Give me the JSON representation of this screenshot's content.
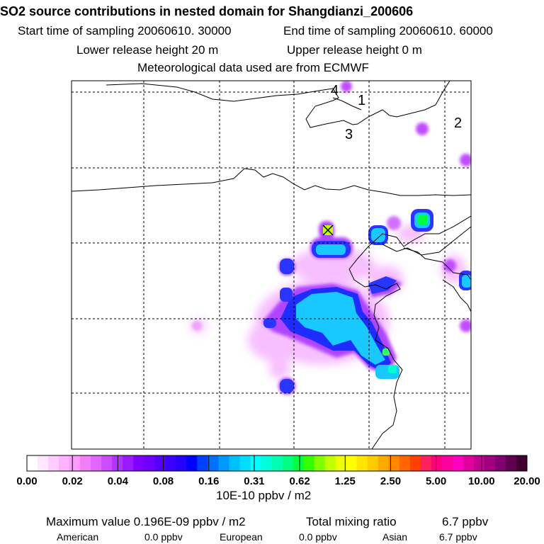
{
  "header": {
    "title": "SO2 source contributions in nested domain for Shangdianzi_200606",
    "start_label": "Start time of sampling 20060610. 30000",
    "end_label": "End time of sampling 20060610. 60000",
    "lower_label": "Lower release height   20 m",
    "upper_label": "Upper release height    0 m",
    "met_label": "Meteorological data used are from ECMWF"
  },
  "map": {
    "region_labels": [
      "4",
      "1",
      "3",
      "2"
    ],
    "station_marker": "x-cross-icon"
  },
  "colorbar": {
    "unit": "10E-10 ppbv / m2",
    "tick_labels": [
      "0.00",
      "0.02",
      "0.04",
      "0.08",
      "0.16",
      "0.31",
      "0.62",
      "1.25",
      "2.50",
      "5.00",
      "10.00",
      "20.00"
    ],
    "colors": [
      "#ffffff",
      "#ffe6ff",
      "#ffccff",
      "#ffb3ff",
      "#ff99ff",
      "#f27ff7",
      "#e066ff",
      "#cc4dff",
      "#b233ff",
      "#9a1aff",
      "#8000ff",
      "#6f00ff",
      "#5500ff",
      "#3b00ff",
      "#2400ff",
      "#0000ff",
      "#0040ff",
      "#0070ff",
      "#0099ff",
      "#00bfff",
      "#00ddff",
      "#00ffff",
      "#00ffd9",
      "#00ffb3",
      "#00ff80",
      "#00ff40",
      "#33ff00",
      "#80ff00",
      "#bfff00",
      "#eeff00",
      "#ffff00",
      "#ffe600",
      "#ffcc00",
      "#ffaa00",
      "#ff8800",
      "#ff6600",
      "#ff4000",
      "#ff2060",
      "#ff0080",
      "#ff00a0",
      "#ff00c0",
      "#e000a0",
      "#c00090",
      "#a00080",
      "#800070",
      "#600050",
      "#400030"
    ]
  },
  "footer": {
    "max_label": "Maximum value  0.196E-09 ppbv / m2",
    "total_label": "Total mixing ratio",
    "total_value": "6.7 ppbv",
    "american_label": "American",
    "american_value": "0.0 ppbv",
    "european_label": "European",
    "european_value": "0.0 ppbv",
    "asian_label": "Asian",
    "asian_value": "6.7 ppbv"
  },
  "colors": {
    "frame": "#000000",
    "grid": "#000000",
    "coast": "#000000"
  }
}
